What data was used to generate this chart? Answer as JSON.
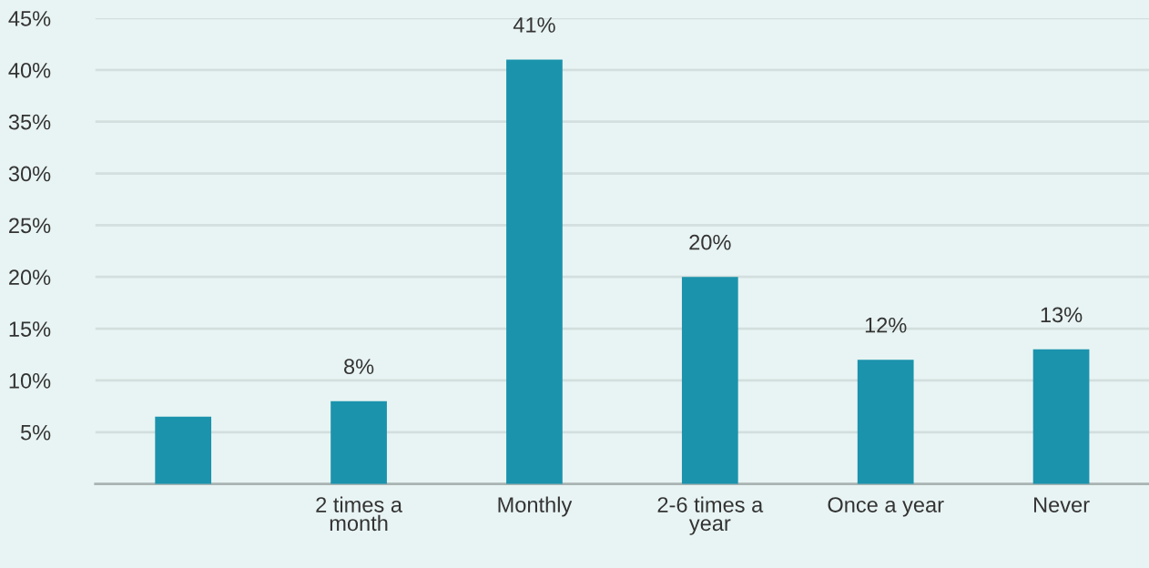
{
  "chart_data": {
    "type": "bar",
    "categories": [
      null,
      "2 times a\nmonth",
      "Monthly",
      "2-6 times a\nyear",
      "Once a year",
      "Never"
    ],
    "values": [
      6.5,
      8,
      41,
      20,
      12,
      13
    ],
    "value_labels": [
      null,
      "8%",
      "41%",
      "20%",
      "12%",
      "13%"
    ],
    "color": "#1b93ad",
    "ylim": [
      0,
      45
    ],
    "yticks": [
      {
        "value": 5,
        "label": "5%"
      },
      {
        "value": 10,
        "label": "10%"
      },
      {
        "value": 15,
        "label": "15%"
      },
      {
        "value": 20,
        "label": "20%"
      },
      {
        "value": 25,
        "label": "25%"
      },
      {
        "value": 30,
        "label": "30%"
      },
      {
        "value": 35,
        "label": "35%"
      },
      {
        "value": 40,
        "label": "40%"
      },
      {
        "value": 45,
        "label": "45%"
      }
    ],
    "grid": "y"
  }
}
